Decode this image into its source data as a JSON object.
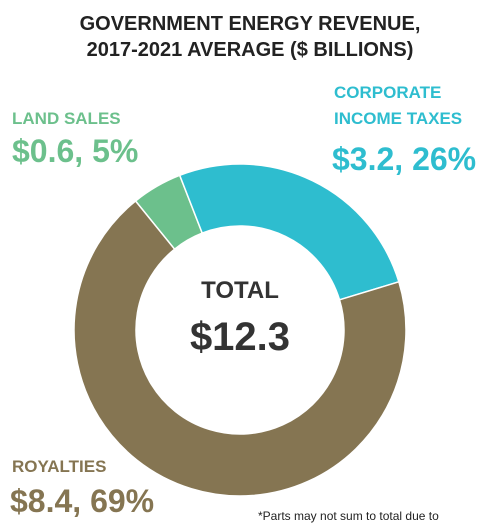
{
  "chart_data": {
    "type": "donut",
    "title": [
      "GOVERNMENT ENERGY REVENUE,",
      "2017-2021 AVERAGE ($ BILLIONS)"
    ],
    "categories": [
      "LAND SALES",
      [
        "CORPORATE",
        "INCOME TAXES"
      ],
      "ROYALTIES"
    ],
    "values": [
      0.6,
      3.2,
      8.4
    ],
    "value_labels": [
      "$0.6, 5%",
      "$3.2, 26%",
      "$8.4, 69%"
    ],
    "colors": [
      "#6cc08c",
      "#2ebdcf",
      "#857552"
    ],
    "center_label": "TOTAL",
    "center_value": "$12.3",
    "footnote": "*Parts may not sum to total due to"
  }
}
